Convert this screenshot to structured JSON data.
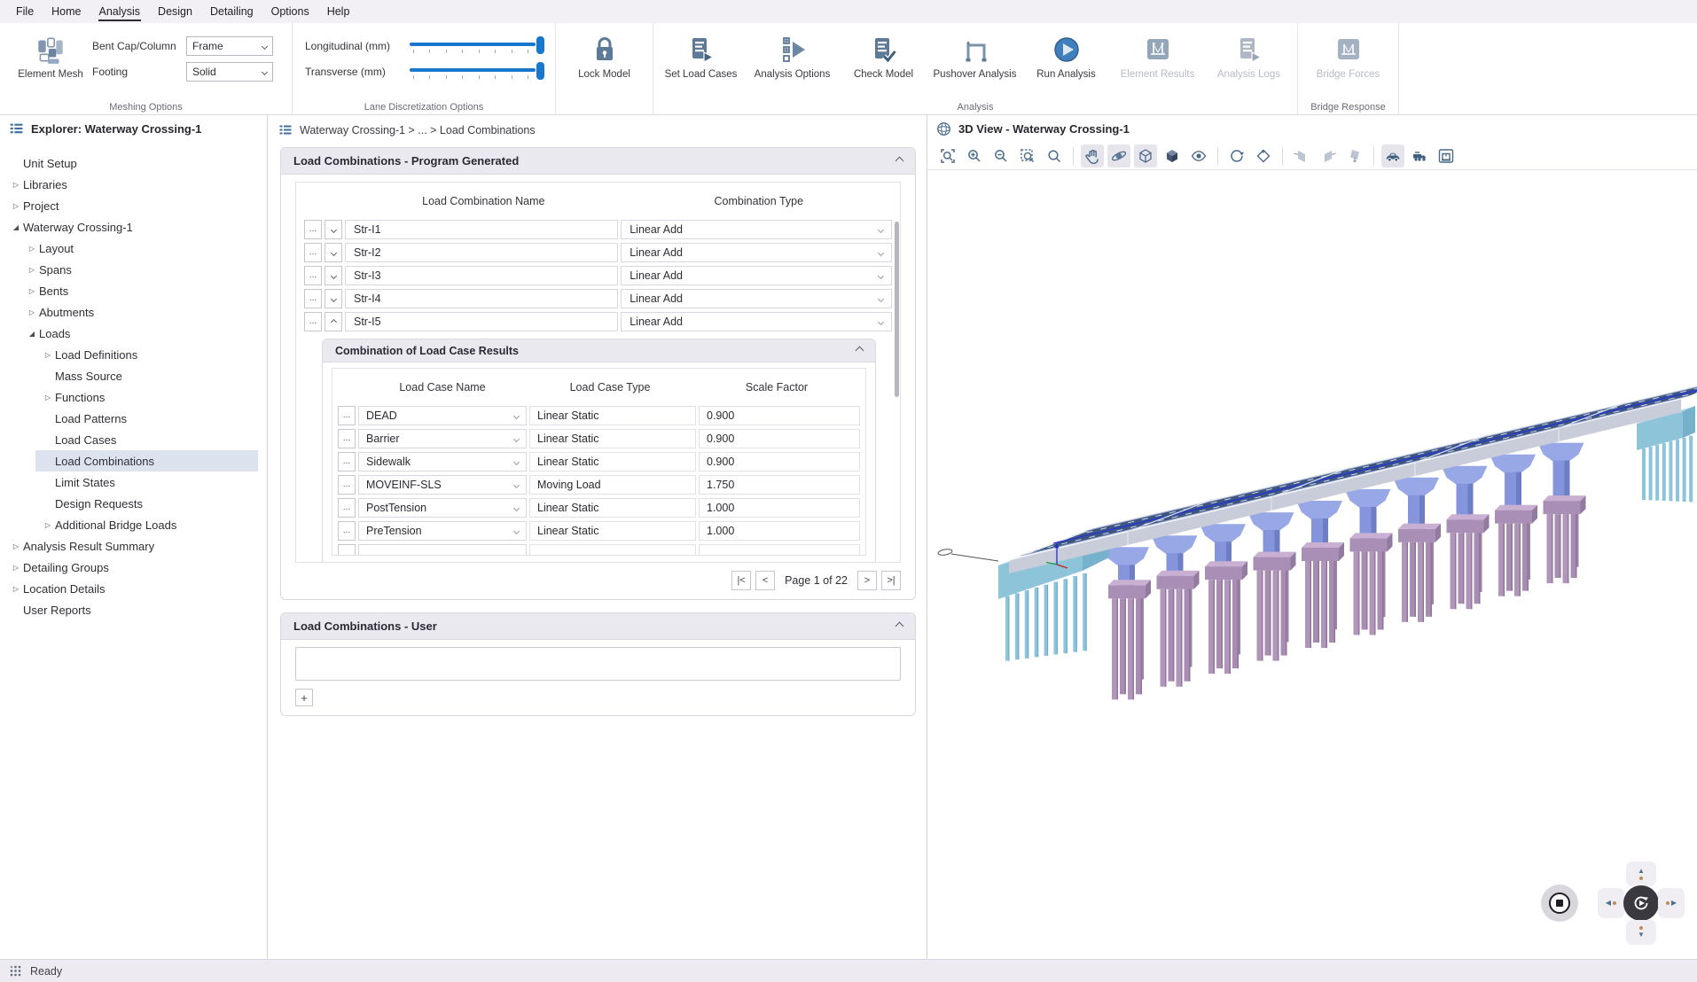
{
  "menu": {
    "items": [
      "File",
      "Home",
      "Analysis",
      "Design",
      "Detailing",
      "Options",
      "Help"
    ],
    "active": "Analysis"
  },
  "ribbon": {
    "meshing": {
      "group_label": "Meshing Options",
      "mesh_label": "Element Mesh",
      "fields": [
        {
          "label": "Bent Cap/Column",
          "value": "Frame"
        },
        {
          "label": "Footing",
          "value": "Solid"
        }
      ]
    },
    "lane": {
      "group_label": "Lane Discretization Options",
      "sliders": [
        {
          "label": "Longitudinal (mm)"
        },
        {
          "label": "Transverse (mm)"
        }
      ]
    },
    "lock": {
      "label": "Lock Model"
    },
    "analysis": {
      "group_label": "Analysis",
      "buttons": [
        {
          "label": "Set Load Cases",
          "enabled": true
        },
        {
          "label": "Analysis Options",
          "enabled": true
        },
        {
          "label": "Check Model",
          "enabled": true
        },
        {
          "label": "Pushover Analysis",
          "enabled": true
        },
        {
          "label": "Run Analysis",
          "enabled": true
        },
        {
          "label": "Element Results",
          "enabled": false
        },
        {
          "label": "Analysis Logs",
          "enabled": false
        }
      ]
    },
    "bridge_response": {
      "group_label": "Bridge Response",
      "buttons": [
        {
          "label": "Bridge Forces",
          "enabled": false
        }
      ]
    }
  },
  "explorer": {
    "title": "Explorer: Waterway Crossing-1",
    "tree": [
      {
        "label": "Unit Setup",
        "arrow": ""
      },
      {
        "label": "Libraries",
        "arrow": "▷"
      },
      {
        "label": "Project",
        "arrow": "▷"
      },
      {
        "label": "Waterway Crossing-1",
        "arrow": "◢"
      },
      {
        "label": "Layout",
        "arrow": "▷"
      },
      {
        "label": "Spans",
        "arrow": "▷"
      },
      {
        "label": "Bents",
        "arrow": "▷"
      },
      {
        "label": "Abutments",
        "arrow": "▷"
      },
      {
        "label": "Loads",
        "arrow": "◢"
      },
      {
        "label": "Load Definitions",
        "arrow": "▷"
      },
      {
        "label": "Mass Source",
        "arrow": ""
      },
      {
        "label": "Functions",
        "arrow": "▷"
      },
      {
        "label": "Load Patterns",
        "arrow": ""
      },
      {
        "label": "Load Cases",
        "arrow": ""
      },
      {
        "label": "Load Combinations",
        "arrow": ""
      },
      {
        "label": "Limit States",
        "arrow": ""
      },
      {
        "label": "Design Requests",
        "arrow": ""
      },
      {
        "label": "Additional Bridge Loads",
        "arrow": "▷"
      },
      {
        "label": "Analysis Result Summary",
        "arrow": "▷"
      },
      {
        "label": "Detailing Groups",
        "arrow": "▷"
      },
      {
        "label": "Location Details",
        "arrow": "▷"
      },
      {
        "label": "User Reports",
        "arrow": ""
      }
    ]
  },
  "content": {
    "breadcrumb": "Waterway Crossing-1 > ... > Load Combinations",
    "program": {
      "title": "Load Combinations - Program Generated",
      "columns": [
        "Load Combination Name",
        "Combination Type"
      ],
      "ellipsis": "...",
      "rows": [
        {
          "name": "Str-I1",
          "type": "Linear Add"
        },
        {
          "name": "Str-I2",
          "type": "Linear Add"
        },
        {
          "name": "Str-I3",
          "type": "Linear Add"
        },
        {
          "name": "Str-I4",
          "type": "Linear Add"
        },
        {
          "name": "Str-I5",
          "type": "Linear Add"
        }
      ],
      "sub": {
        "title": "Combination of Load Case Results",
        "columns": [
          "Load Case Name",
          "Load Case Type",
          "Scale Factor"
        ],
        "rows": [
          [
            "DEAD",
            "Linear Static",
            "0.900"
          ],
          [
            "Barrier",
            "Linear Static",
            "0.900"
          ],
          [
            "Sidewalk",
            "Linear Static",
            "0.900"
          ],
          [
            "MOVEINF-SLS",
            "Moving Load",
            "1.750"
          ],
          [
            "PostTension",
            "Linear Static",
            "1.000"
          ],
          [
            "PreTension",
            "Linear Static",
            "1.000"
          ]
        ]
      },
      "pagination": {
        "first": "|<",
        "prev": "<",
        "label": "Page 1 of 22",
        "next": ">",
        "last": ">|"
      }
    },
    "user": {
      "title": "Load Combinations - User",
      "add_label": "+"
    }
  },
  "view3d": {
    "title": "3D View - Waterway Crossing-1"
  },
  "statusbar": {
    "text": "Ready"
  },
  "colors": {
    "accent_blue": "#1878d0",
    "steel_icon": "#5d7a99",
    "deck_surface": "#3d5580",
    "deck_centerline": "#2737cf",
    "pier_column": "#8495dc",
    "pile_cap": "#a98fb6",
    "pile": "#b295bb",
    "abutment": "#8ec4da",
    "abutment_pile": "#8cc3dd",
    "selection_bg": "#dce3ef",
    "card_header_bg": "#ebe9f0"
  }
}
